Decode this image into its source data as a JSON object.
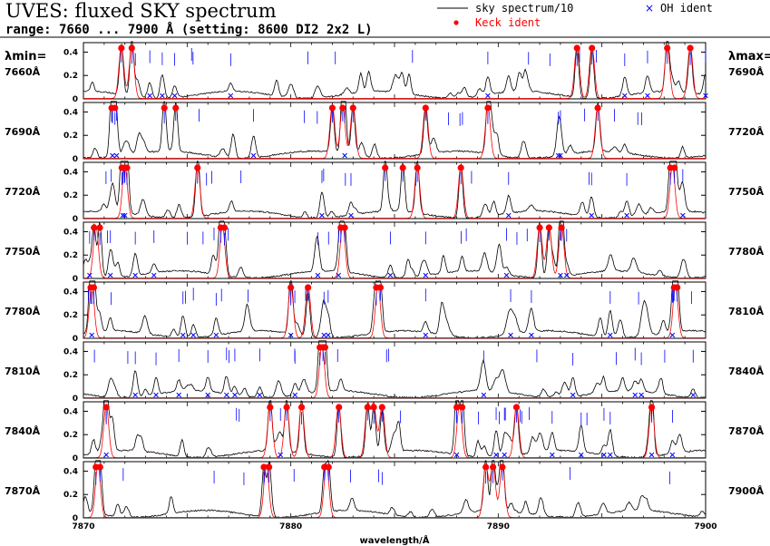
{
  "header": {
    "title": "UVES: fluxed SKY spectrum",
    "range_line": "range: 7660 ... 7900 Å (setting: 8600 DI2 2x2 L)"
  },
  "legend": {
    "sky_label": "sky spectrum/10",
    "oh_label": "OH ident",
    "keck_label": "Keck ident"
  },
  "labels": {
    "lambda_min": "λmin=",
    "lambda_max": "λmax=",
    "xlabel": "wavelength/Å"
  },
  "colors": {
    "sky": "#000000",
    "red_line": "#ff0000",
    "keck_marker": "#ff0000",
    "oh_marker": "#0000ff",
    "tick_line": "#0000ff"
  },
  "chart_data": {
    "type": "line",
    "ylim": [
      0,
      0.45
    ],
    "yticks": [
      "0",
      "0.2",
      "0.4"
    ],
    "bottom_xticks": [
      "7870",
      "7880",
      "7890",
      "7900"
    ],
    "panels": [
      {
        "start": 7660,
        "end": 7690,
        "left_label": "7660Å",
        "right_label": "7690Å",
        "keck": [
          7661.83,
          7662.33,
          7683.8,
          7684.52,
          7688.15,
          7689.26
        ],
        "oh": [
          7663.2,
          7663.8,
          7664.4,
          7667.1,
          7679.5,
          7686.1,
          7687.2,
          7690.0
        ],
        "red_peaks": [
          7661.83,
          7662.33,
          7683.8,
          7684.52,
          7688.15,
          7689.26
        ]
      },
      {
        "start": 7690,
        "end": 7720,
        "left_label": "7690Å",
        "right_label": "7720Å",
        "keck": [
          7691.36,
          7691.52,
          7693.9,
          7694.45,
          7702.0,
          7702.5,
          7703.0,
          7706.5,
          7709.5,
          7714.8
        ],
        "oh": [
          7691.4,
          7691.6,
          7698.2,
          7702.6,
          7712.9,
          7713.0
        ],
        "red_peaks": [
          7702.0,
          7702.5,
          7703.0,
          7706.5,
          7709.5,
          7714.8
        ]
      },
      {
        "start": 7720,
        "end": 7750,
        "left_label": "7720Å",
        "right_label": "7750Å",
        "keck": [
          7721.85,
          7721.98,
          7722.1,
          7725.5,
          7734.55,
          7735.4,
          7736.1,
          7738.2,
          7748.3,
          7748.5
        ],
        "oh": [
          7721.9,
          7722.0,
          7731.5,
          7732.9,
          7740.5,
          7744.5,
          7746.2,
          7748.9
        ],
        "red_peaks": [
          7722.0,
          7725.5,
          7736.1,
          7738.2,
          7748.4
        ]
      },
      {
        "start": 7750,
        "end": 7780,
        "left_label": "7750Å",
        "right_label": "7780Å",
        "keck": [
          7750.51,
          7750.79,
          7756.62,
          7756.8,
          7762.41,
          7762.6,
          7772.0,
          7772.45,
          7773.05
        ],
        "oh": [
          7750.3,
          7751.3,
          7752.5,
          7753.4,
          7761.3,
          7762.3,
          7764.8,
          7766.5,
          7770.4,
          7773.0,
          7773.3
        ],
        "red_peaks": [
          7750.6,
          7756.7,
          7762.5,
          7772.0,
          7772.45,
          7773.05
        ]
      },
      {
        "start": 7780,
        "end": 7810,
        "left_label": "7780Å",
        "right_label": "7810Å",
        "keck": [
          7780.35,
          7780.5,
          7790.0,
          7790.83,
          7794.12,
          7794.32,
          7808.48,
          7808.63
        ],
        "oh": [
          7780.4,
          7784.8,
          7785.3,
          7786.4,
          7790.0,
          7791.6,
          7791.8,
          7796.5,
          7800.6,
          7801.6,
          7805.4,
          7808.4
        ],
        "red_peaks": [
          7780.4,
          7790.0,
          7790.83,
          7794.2,
          7808.55
        ]
      },
      {
        "start": 7810,
        "end": 7840,
        "left_label": "7810Å",
        "right_label": "7840Å",
        "keck": [
          7821.4,
          7821.55,
          7821.65
        ],
        "oh": [
          7812.5,
          7813.5,
          7814.6,
          7816.0,
          7816.9,
          7817.3,
          7818.5,
          7820.2,
          7829.3,
          7833.6,
          7836.6,
          7836.9,
          7839.4
        ],
        "red_peaks": [
          7821.5
        ]
      },
      {
        "start": 7840,
        "end": 7870,
        "left_label": "7840Å",
        "right_label": "7870Å",
        "keck": [
          7841.1,
          7849.0,
          7849.8,
          7850.52,
          7852.32,
          7853.7,
          7854.0,
          7854.4,
          7858.0,
          7858.26,
          7860.88,
          7867.4
        ],
        "oh": [
          7841.1,
          7849.5,
          7858.0,
          7859.9,
          7860.3,
          7862.6,
          7864.0,
          7865.1,
          7865.4,
          7867.4,
          7868.4
        ],
        "red_peaks": [
          7841.1,
          7849.0,
          7849.8,
          7850.52,
          7852.3,
          7853.7,
          7854.0,
          7854.4,
          7858.13,
          7860.88,
          7867.4
        ]
      },
      {
        "start": 7870,
        "end": 7900,
        "left_label": "7870Å",
        "right_label": "7900Å",
        "keck": [
          7870.6,
          7870.8,
          7878.7,
          7878.95,
          7881.62,
          7881.82,
          7889.4,
          7889.75,
          7890.2
        ],
        "oh": [],
        "red_peaks": [
          7870.7,
          7878.82,
          7881.72,
          7889.4,
          7889.75,
          7890.2
        ]
      }
    ]
  }
}
